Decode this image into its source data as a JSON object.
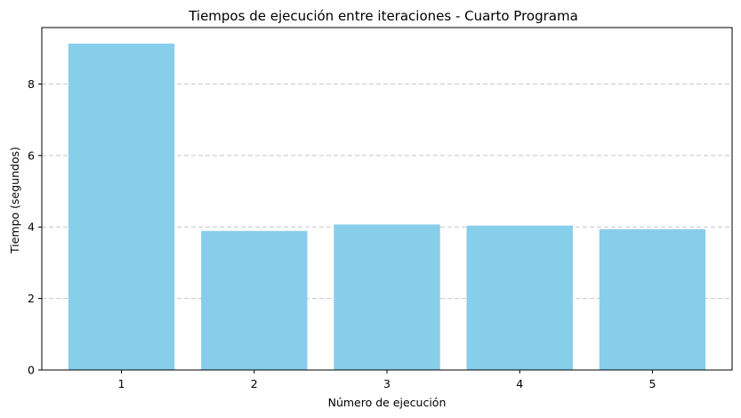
{
  "chart_data": {
    "type": "bar",
    "title": "Tiempos de ejecución entre iteraciones - Cuarto Programa",
    "xlabel": "Número de ejecución",
    "ylabel": "Tiempo (segundos)",
    "categories": [
      "1",
      "2",
      "3",
      "4",
      "5"
    ],
    "values": [
      9.13,
      3.89,
      4.07,
      4.04,
      3.94
    ],
    "ylim": [
      0,
      9.58
    ],
    "yticks": [
      0,
      2,
      4,
      6,
      8
    ],
    "grid": {
      "axis": "y",
      "style": "dashed"
    },
    "bar_color": "#87CEEB",
    "grid_color": "#c8c8c8"
  }
}
